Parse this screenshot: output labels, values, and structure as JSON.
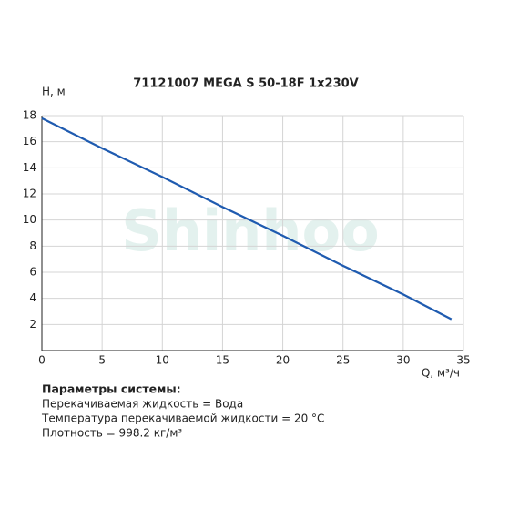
{
  "chart_data": {
    "type": "line",
    "title": "71121007 MEGA S 50-18F 1x230V",
    "y_label": "H, м",
    "x_label": "Q, м³/ч",
    "watermark": "Shinhoo",
    "x": [
      0,
      5,
      10,
      15,
      20,
      25,
      30,
      34
    ],
    "series": [
      {
        "color": "#1f5bb0",
        "values": [
          17.8,
          15.5,
          13.3,
          11.0,
          8.8,
          6.5,
          4.3,
          2.4
        ]
      }
    ],
    "xlim": [
      0,
      35
    ],
    "xticks": [
      0,
      5,
      10,
      15,
      20,
      25,
      30,
      35
    ],
    "ylim": [
      0,
      18
    ],
    "yticks": [
      2,
      4,
      6,
      8,
      10,
      12,
      14,
      16,
      18
    ],
    "grid": true
  },
  "parameters": {
    "title": "Параметры системы:",
    "lines": [
      "Перекачиваемая жидкость = Вода",
      "Температура перекачиваемой жидкости = 20 °C",
      "Плотность = 998.2 кг/м³"
    ]
  }
}
